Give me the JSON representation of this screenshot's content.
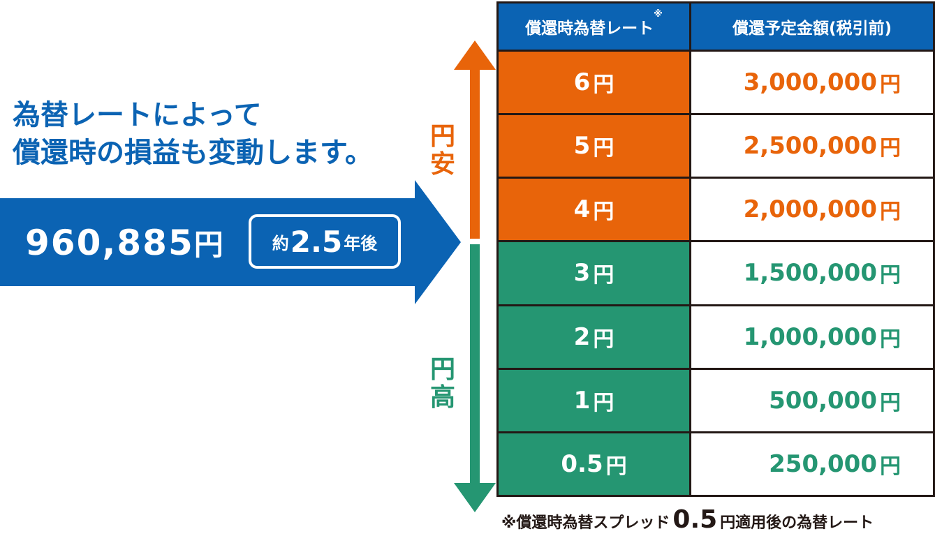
{
  "headline": {
    "line1": "為替レートによって",
    "line2": "償還時の損益も変動します。"
  },
  "investment": {
    "amount": "960,885",
    "amount_unit": "円",
    "approx": "約",
    "years": "2.5",
    "years_suffix": "年後"
  },
  "direction": {
    "weak_yen": "円安",
    "strong_yen": "円高"
  },
  "table": {
    "col1_header": "償還時為替レート",
    "col1_note_mark": "※",
    "col2_header": "償還予定金額(税引前)",
    "unit": "円",
    "rows": [
      {
        "rate": "6",
        "amount": "3,000,000",
        "tone": "orange"
      },
      {
        "rate": "5",
        "amount": "2,500,000",
        "tone": "orange"
      },
      {
        "rate": "4",
        "amount": "2,000,000",
        "tone": "orange"
      },
      {
        "rate": "3",
        "amount": "1,500,000",
        "tone": "green"
      },
      {
        "rate": "2",
        "amount": "1,000,000",
        "tone": "green"
      },
      {
        "rate": "1",
        "amount": "500,000",
        "tone": "green"
      },
      {
        "rate": "0.5",
        "amount": "250,000",
        "tone": "green"
      }
    ]
  },
  "footnote": {
    "prefix": "※償還時為替スプレッド",
    "value": "0.5",
    "suffix": "円適用後の為替レート"
  },
  "colors": {
    "blue": "#0b63b3",
    "orange": "#e8640a",
    "green": "#259672",
    "border": "#231815"
  }
}
